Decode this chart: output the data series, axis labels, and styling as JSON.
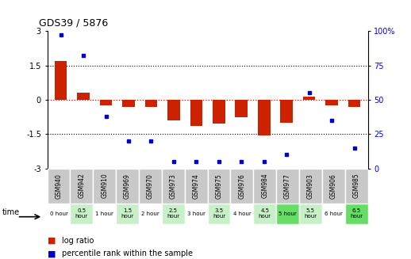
{
  "title": "GDS39 / 5876",
  "samples": [
    "GSM940",
    "GSM942",
    "GSM910",
    "GSM969",
    "GSM970",
    "GSM973",
    "GSM974",
    "GSM975",
    "GSM976",
    "GSM984",
    "GSM977",
    "GSM903",
    "GSM906",
    "GSM985"
  ],
  "time_labels": [
    "0 hour",
    "0.5\nhour",
    "1 hour",
    "1.5\nhour",
    "2 hour",
    "2.5\nhour",
    "3 hour",
    "3.5\nhour",
    "4 hour",
    "4.5\nhour",
    "5 hour",
    "5.5\nhour",
    "6 hour",
    "6.5\nhour"
  ],
  "log_ratio": [
    1.7,
    0.3,
    -0.25,
    -0.32,
    -0.32,
    -0.9,
    -1.15,
    -1.05,
    -0.75,
    -1.55,
    -1.0,
    0.12,
    -0.25,
    -0.32
  ],
  "percentile": [
    97,
    82,
    38,
    20,
    20,
    5,
    5,
    5,
    5,
    5,
    10,
    55,
    35,
    15
  ],
  "ylim": [
    -3,
    3
  ],
  "y2lim": [
    0,
    100
  ],
  "yticks": [
    -3,
    -1.5,
    0,
    1.5,
    3
  ],
  "y2ticks": [
    0,
    25,
    50,
    75,
    100
  ],
  "bar_color": "#cc2200",
  "dot_color": "#0000cc",
  "bg_color": "#ffffff",
  "cell_color_map": [
    "#ffffff",
    "#c8f0c8",
    "#ffffff",
    "#c8f0c8",
    "#ffffff",
    "#c8f0c8",
    "#ffffff",
    "#c8f0c8",
    "#ffffff",
    "#c8f0c8",
    "#66dd66",
    "#c8f0c8",
    "#ffffff",
    "#66dd66"
  ],
  "gsm_bg": "#c8c8c8"
}
